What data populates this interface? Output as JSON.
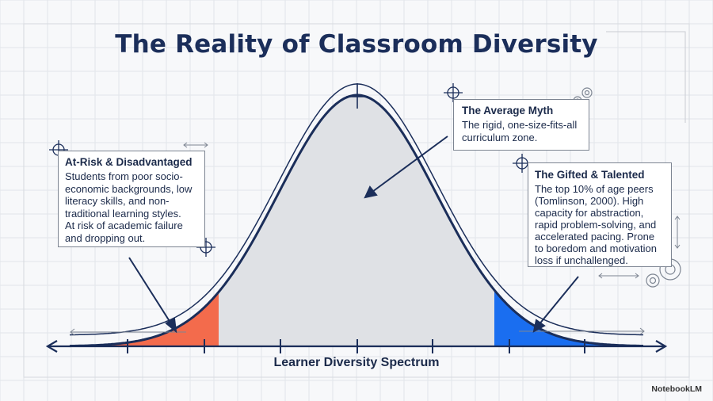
{
  "title": "The Reality of Classroom Diversity",
  "x_axis_label": "Learner Diversity Spectrum",
  "callouts": {
    "at_risk": {
      "heading": "At-Risk & Disadvantaged",
      "lines": [
        "Students from poor socio-",
        "economic backgrounds, low",
        "literacy skills, and non-",
        "traditional learning styles.",
        " At risk of academic failure",
        "and dropping out."
      ]
    },
    "average": {
      "heading": "The Average Myth",
      "lines": [
        "The rigid, one-size-fits-all",
        "curriculum zone."
      ]
    },
    "gifted": {
      "heading": "The Gifted & Talented",
      "lines": [
        "The top 10% of age peers",
        "(Tomlinson, 2000). High",
        "capacity for abstraction,",
        "rapid problem-solving, and",
        "accelerated pacing. Prone",
        "to boredom and motivation",
        "loss if unchallenged."
      ]
    }
  },
  "branding": "NotebookLM",
  "colors": {
    "navy": "#1b2e5a",
    "at_risk_fill": "#f36b4c",
    "average_fill": "#dfe1e5",
    "gifted_fill": "#1a6ef0",
    "grid": "#e2e5ea"
  }
}
